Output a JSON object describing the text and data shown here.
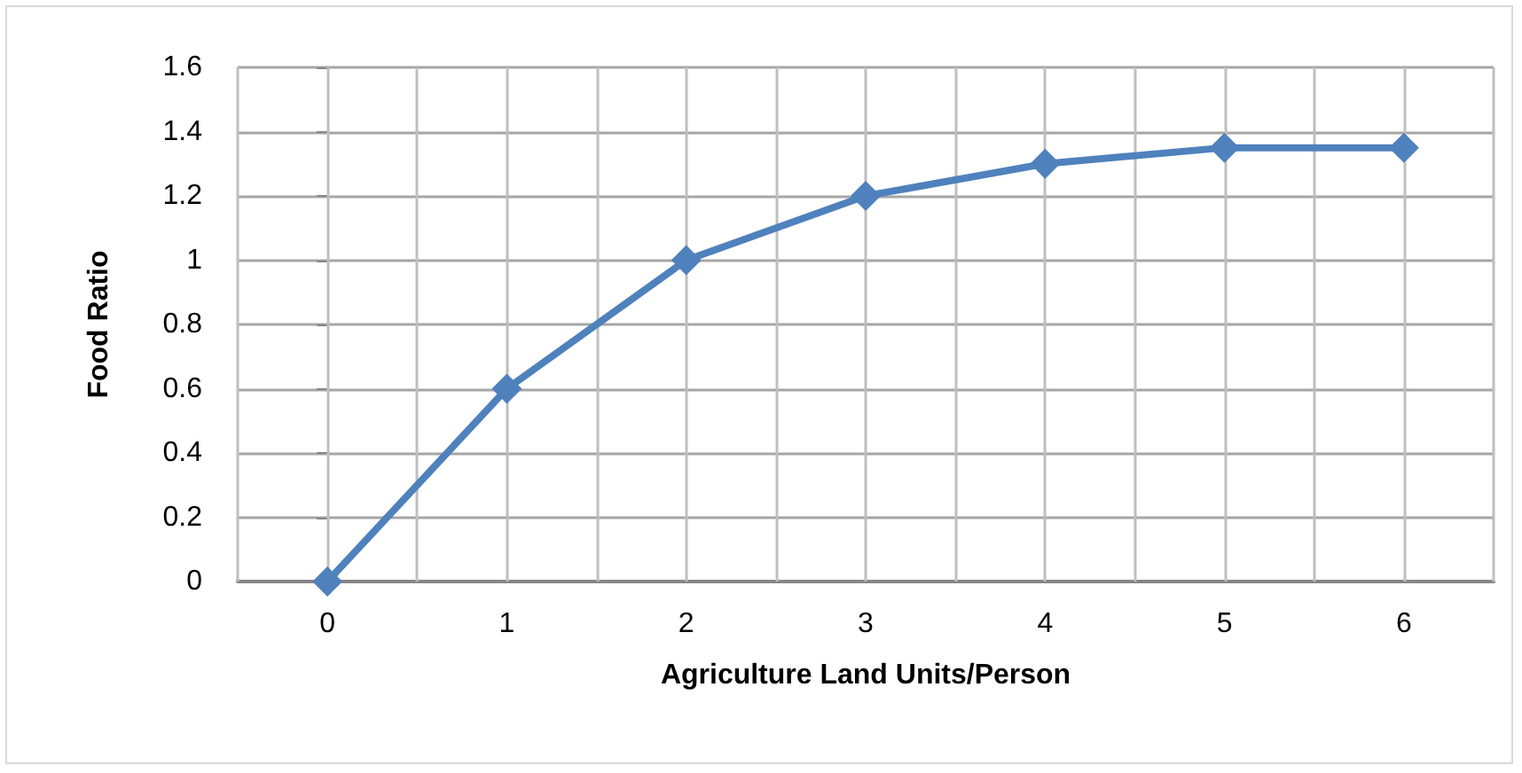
{
  "chart_data": {
    "type": "line",
    "xlabel": "Agriculture Land Units/Person",
    "ylabel": "Food Ratio",
    "x": [
      0,
      1,
      2,
      3,
      4,
      5,
      6
    ],
    "series": [
      {
        "color": "#4f81bd",
        "values": [
          0,
          0.6,
          1,
          1.2,
          1.3,
          1.35,
          1.35
        ]
      }
    ],
    "xlim": [
      -0.5,
      6.5
    ],
    "xticks": [
      {
        "value": -0.5,
        "label": null
      },
      0,
      {
        "value": 0.5,
        "label": null
      },
      1,
      {
        "value": 1.5,
        "label": null
      },
      2,
      {
        "value": 2.5,
        "label": null
      },
      3,
      {
        "value": 3.5,
        "label": null
      },
      4,
      {
        "value": 4.5,
        "label": null
      },
      5,
      {
        "value": 5.5,
        "label": null
      },
      6,
      {
        "value": 6.5,
        "label": null
      }
    ],
    "ylim": [
      0,
      1.6
    ],
    "yticks": [
      0,
      0.2,
      0.4,
      0.6,
      0.8,
      1,
      1.2,
      1.4,
      1.6
    ],
    "grid": true,
    "marker": "diamond",
    "line_style": "solid"
  }
}
